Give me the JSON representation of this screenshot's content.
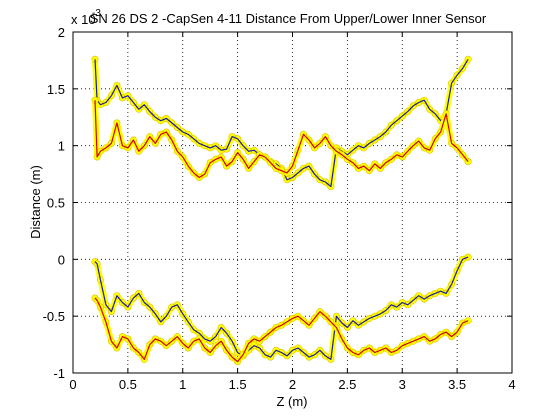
{
  "chart_data": {
    "type": "line",
    "title": "SN 26 DS 2 -CapSen 4-11 Distance From Upper/Lower Inner Sensor",
    "xlabel": "Z (m)",
    "ylabel": "Distance (m)",
    "exponent_label": "x 10",
    "exponent_power": "-3",
    "xlim": [
      0,
      4
    ],
    "ylim": [
      -1,
      2
    ],
    "xticks": [
      "0",
      "0.5",
      "1",
      "1.5",
      "2",
      "2.5",
      "3",
      "3.5",
      "4"
    ],
    "yticks": [
      "-1",
      "-0.5",
      "0",
      "0.5",
      "1",
      "1.5",
      "2"
    ],
    "grid": true,
    "colors": {
      "marker": "#ffff00",
      "marker_edge": "#e0c000",
      "series_blue": "#1a1aa8",
      "series_red": "#d00000"
    },
    "series": [
      {
        "color": "#1a1aa8",
        "x": [
          0.2,
          0.22,
          0.25,
          0.3,
          0.35,
          0.4,
          0.45,
          0.5,
          0.55,
          0.6,
          0.65,
          0.7,
          0.75,
          0.8,
          0.85,
          0.9,
          0.95,
          1.0,
          1.05,
          1.1,
          1.15,
          1.2,
          1.25,
          1.3,
          1.35,
          1.4,
          1.45,
          1.5,
          1.55,
          1.6,
          1.65,
          1.7,
          1.75,
          1.8,
          1.85,
          1.9,
          1.95,
          2.0,
          2.05,
          2.1,
          2.15,
          2.2,
          2.25,
          2.3,
          2.35,
          2.4,
          2.45,
          2.5,
          2.55,
          2.6,
          2.65,
          2.7,
          2.75,
          2.8,
          2.85,
          2.9,
          2.95,
          3.0,
          3.05,
          3.1,
          3.15,
          3.2,
          3.25,
          3.3,
          3.35,
          3.4,
          3.45,
          3.5,
          3.55,
          3.6
        ],
        "y": [
          1.76,
          1.4,
          1.36,
          1.38,
          1.44,
          1.53,
          1.42,
          1.44,
          1.38,
          1.32,
          1.36,
          1.3,
          1.25,
          1.22,
          1.24,
          1.2,
          1.16,
          1.12,
          1.1,
          1.06,
          1.02,
          1.0,
          0.98,
          1.0,
          0.96,
          0.97,
          1.08,
          1.06,
          1.0,
          0.95,
          0.96,
          0.92,
          0.9,
          0.86,
          0.84,
          0.8,
          0.7,
          0.72,
          0.76,
          0.8,
          0.82,
          0.75,
          0.7,
          0.68,
          0.64,
          0.98,
          0.95,
          0.92,
          0.96,
          1.0,
          0.98,
          1.02,
          1.05,
          1.08,
          1.12,
          1.18,
          1.22,
          1.26,
          1.3,
          1.35,
          1.38,
          1.4,
          1.32,
          1.28,
          1.22,
          1.28,
          1.55,
          1.62,
          1.68,
          1.76
        ]
      },
      {
        "color": "#d00000",
        "x": [
          0.2,
          0.22,
          0.25,
          0.3,
          0.35,
          0.4,
          0.45,
          0.5,
          0.55,
          0.6,
          0.65,
          0.7,
          0.75,
          0.8,
          0.85,
          0.9,
          0.95,
          1.0,
          1.05,
          1.1,
          1.15,
          1.2,
          1.25,
          1.3,
          1.35,
          1.4,
          1.45,
          1.5,
          1.55,
          1.6,
          1.65,
          1.7,
          1.75,
          1.8,
          1.85,
          1.9,
          1.95,
          2.0,
          2.05,
          2.1,
          2.15,
          2.2,
          2.25,
          2.3,
          2.35,
          2.4,
          2.45,
          2.5,
          2.55,
          2.6,
          2.65,
          2.7,
          2.75,
          2.8,
          2.85,
          2.9,
          2.95,
          3.0,
          3.05,
          3.1,
          3.15,
          3.2,
          3.25,
          3.3,
          3.35,
          3.4,
          3.45,
          3.5,
          3.55,
          3.6
        ],
        "y": [
          1.4,
          0.9,
          0.95,
          0.98,
          1.02,
          1.2,
          1.0,
          0.98,
          1.05,
          0.95,
          1.0,
          1.08,
          1.02,
          1.1,
          1.12,
          1.05,
          0.95,
          0.9,
          0.82,
          0.76,
          0.72,
          0.75,
          0.85,
          0.88,
          0.9,
          0.82,
          0.86,
          0.94,
          0.88,
          0.8,
          0.86,
          0.92,
          0.9,
          0.85,
          0.8,
          0.78,
          0.76,
          0.82,
          0.96,
          1.1,
          1.05,
          0.98,
          1.02,
          1.08,
          1.0,
          0.95,
          0.92,
          0.88,
          0.85,
          0.8,
          0.82,
          0.78,
          0.84,
          0.8,
          0.85,
          0.88,
          0.92,
          0.9,
          0.95,
          1.0,
          1.04,
          0.98,
          0.96,
          1.06,
          1.12,
          1.28,
          1.02,
          0.98,
          0.92,
          0.86
        ]
      },
      {
        "color": "#1a1aa8",
        "x": [
          0.2,
          0.22,
          0.25,
          0.3,
          0.35,
          0.4,
          0.45,
          0.5,
          0.55,
          0.6,
          0.65,
          0.7,
          0.75,
          0.8,
          0.85,
          0.9,
          0.95,
          1.0,
          1.05,
          1.1,
          1.15,
          1.2,
          1.25,
          1.3,
          1.35,
          1.4,
          1.45,
          1.5,
          1.55,
          1.6,
          1.65,
          1.7,
          1.75,
          1.8,
          1.85,
          1.9,
          1.95,
          2.0,
          2.05,
          2.1,
          2.15,
          2.2,
          2.25,
          2.3,
          2.35,
          2.4,
          2.45,
          2.5,
          2.55,
          2.6,
          2.65,
          2.7,
          2.75,
          2.8,
          2.85,
          2.9,
          2.95,
          3.0,
          3.05,
          3.1,
          3.15,
          3.2,
          3.25,
          3.3,
          3.35,
          3.4,
          3.45,
          3.5,
          3.55,
          3.6
        ],
        "y": [
          -0.02,
          -0.04,
          -0.18,
          -0.4,
          -0.46,
          -0.32,
          -0.38,
          -0.42,
          -0.34,
          -0.3,
          -0.38,
          -0.42,
          -0.48,
          -0.55,
          -0.5,
          -0.42,
          -0.4,
          -0.48,
          -0.55,
          -0.62,
          -0.65,
          -0.7,
          -0.72,
          -0.68,
          -0.6,
          -0.65,
          -0.72,
          -0.82,
          -0.85,
          -0.8,
          -0.76,
          -0.78,
          -0.84,
          -0.86,
          -0.8,
          -0.82,
          -0.85,
          -0.8,
          -0.78,
          -0.82,
          -0.86,
          -0.84,
          -0.8,
          -0.85,
          -0.88,
          -0.5,
          -0.56,
          -0.6,
          -0.54,
          -0.58,
          -0.55,
          -0.52,
          -0.5,
          -0.48,
          -0.45,
          -0.4,
          -0.42,
          -0.38,
          -0.4,
          -0.36,
          -0.32,
          -0.35,
          -0.32,
          -0.3,
          -0.28,
          -0.3,
          -0.22,
          -0.1,
          0.0,
          0.02
        ]
      },
      {
        "color": "#d00000",
        "x": [
          0.2,
          0.22,
          0.25,
          0.3,
          0.35,
          0.4,
          0.45,
          0.5,
          0.55,
          0.6,
          0.65,
          0.7,
          0.75,
          0.8,
          0.85,
          0.9,
          0.95,
          1.0,
          1.05,
          1.1,
          1.15,
          1.2,
          1.25,
          1.3,
          1.35,
          1.4,
          1.45,
          1.5,
          1.55,
          1.6,
          1.65,
          1.7,
          1.75,
          1.8,
          1.85,
          1.9,
          1.95,
          2.0,
          2.05,
          2.1,
          2.15,
          2.2,
          2.25,
          2.3,
          2.35,
          2.4,
          2.45,
          2.5,
          2.55,
          2.6,
          2.65,
          2.7,
          2.75,
          2.8,
          2.85,
          2.9,
          2.95,
          3.0,
          3.05,
          3.1,
          3.15,
          3.2,
          3.25,
          3.3,
          3.35,
          3.4,
          3.45,
          3.5,
          3.55,
          3.6
        ],
        "y": [
          -0.34,
          -0.36,
          -0.42,
          -0.55,
          -0.72,
          -0.78,
          -0.68,
          -0.7,
          -0.78,
          -0.82,
          -0.88,
          -0.75,
          -0.7,
          -0.72,
          -0.76,
          -0.72,
          -0.68,
          -0.74,
          -0.78,
          -0.72,
          -0.7,
          -0.78,
          -0.82,
          -0.76,
          -0.72,
          -0.8,
          -0.86,
          -0.9,
          -0.84,
          -0.74,
          -0.7,
          -0.72,
          -0.68,
          -0.64,
          -0.6,
          -0.58,
          -0.55,
          -0.52,
          -0.5,
          -0.54,
          -0.58,
          -0.52,
          -0.46,
          -0.5,
          -0.55,
          -0.6,
          -0.7,
          -0.78,
          -0.82,
          -0.84,
          -0.8,
          -0.78,
          -0.82,
          -0.8,
          -0.78,
          -0.82,
          -0.8,
          -0.76,
          -0.74,
          -0.72,
          -0.7,
          -0.68,
          -0.72,
          -0.7,
          -0.66,
          -0.64,
          -0.68,
          -0.64,
          -0.56,
          -0.54
        ]
      }
    ]
  }
}
